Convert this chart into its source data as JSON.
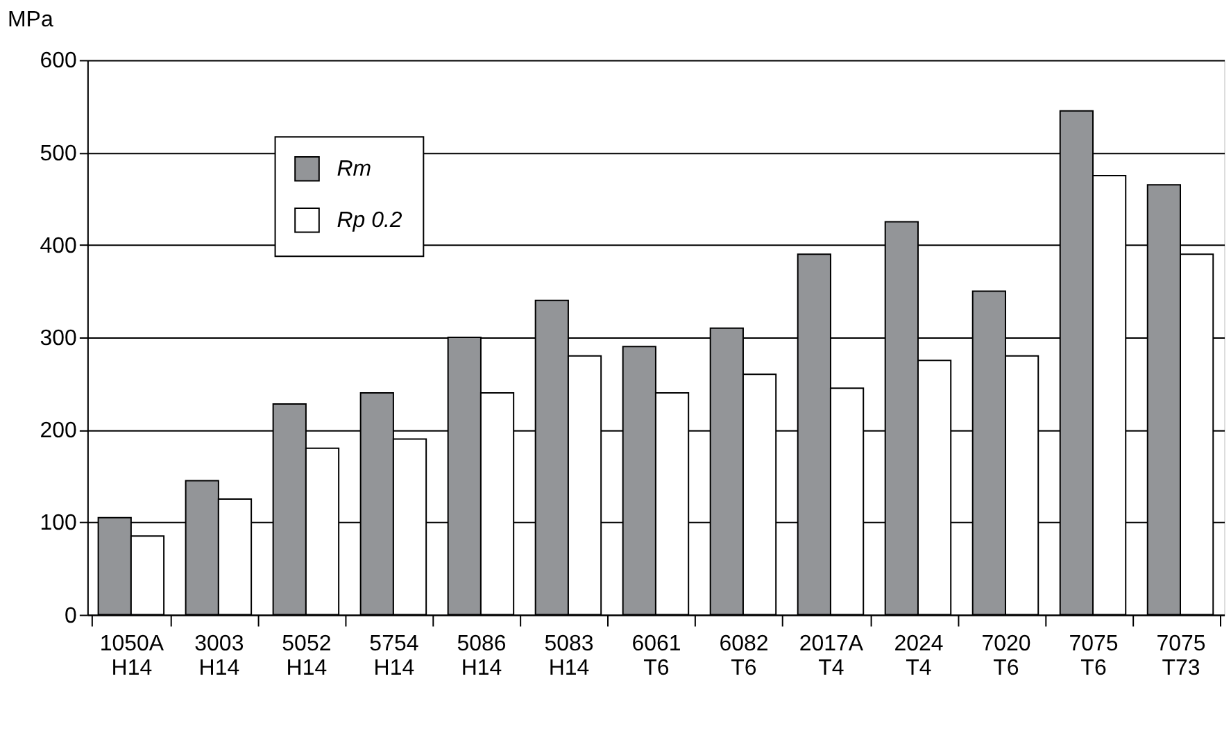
{
  "chart_data": {
    "type": "bar",
    "ylabel": "MPa",
    "categories": [
      "1050A\nH14",
      "3003\nH14",
      "5052\nH14",
      "5754\nH14",
      "5086\nH14",
      "5083\nH14",
      "6061\nT6",
      "6082\nT6",
      "2017A\nT4",
      "2024\nT4",
      "7020\nT6",
      "7075\nT6",
      "7075\nT73"
    ],
    "series": [
      {
        "name": "Rm",
        "color": "#939598",
        "values": [
          105,
          145,
          228,
          240,
          300,
          340,
          290,
          310,
          390,
          425,
          350,
          545,
          465
        ]
      },
      {
        "name": "Rp 0.2",
        "color": "#ffffff",
        "values": [
          85,
          125,
          180,
          190,
          240,
          280,
          240,
          260,
          245,
          275,
          280,
          475,
          390
        ]
      }
    ],
    "ylim": [
      0,
      600
    ],
    "yticks": [
      0,
      100,
      200,
      300,
      400,
      500,
      600
    ],
    "grid": "y",
    "legend": "top left"
  }
}
